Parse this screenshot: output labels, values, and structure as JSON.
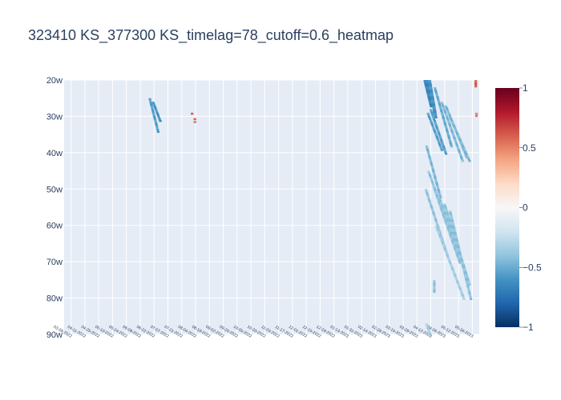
{
  "chart_data": {
    "type": "heatmap",
    "title": "323410 KS_377300 KS_timelag=78_cutoff=0.6_heatmap",
    "xlabel": "",
    "ylabel": "",
    "x_tick_labels": [
      "03-28-2022",
      "04-11-2022",
      "04-25-2022",
      "05-10-2022",
      "05-24-2022",
      "06-08-2022",
      "06-22-2022",
      "07-07-2022",
      "07-21-2022",
      "08-04-2022",
      "08-18-2022",
      "09-02-2022",
      "09-20-2022",
      "10-05-2022",
      "10-20-2022",
      "11-03-2022",
      "11-17-2022",
      "12-01-2022",
      "12-15-2022",
      "12-29-2022",
      "01-13-2023",
      "01-31-2023",
      "02-14-2023",
      "02-28-2023",
      "03-15-2023",
      "03-29-2023",
      "04-12-2023",
      "04-26-2023",
      "05-12-2023",
      "05-26-2023"
    ],
    "y_tick_labels": [
      "20w",
      "30w",
      "40w",
      "50w",
      "60w",
      "70w",
      "80w",
      "90w"
    ],
    "y_range": [
      20,
      90
    ],
    "zmin": -1,
    "zmax": 1,
    "colorscale": "RdBu",
    "colorbar_ticks": [
      "1",
      "0.5",
      "0",
      "−0.5",
      "−1"
    ],
    "colorbar_tick_values": [
      1,
      0.5,
      0,
      -0.5,
      -1
    ],
    "grid": true,
    "n_x": 30,
    "strokes": [
      {
        "x0": 6.2,
        "y0": 25,
        "x1": 6.8,
        "y1": 34,
        "w": 0.18,
        "value": -0.55
      },
      {
        "x0": 6.45,
        "y0": 26,
        "x1": 6.95,
        "y1": 31,
        "w": 0.12,
        "value": -0.6
      },
      {
        "x0": 9.25,
        "y0": 29,
        "x1": 9.25,
        "y1": 29.4,
        "w": 0.08,
        "value": 0.6
      },
      {
        "x0": 9.45,
        "y0": 30.5,
        "x1": 9.45,
        "y1": 31.3,
        "w": 0.1,
        "value": 0.6
      },
      {
        "x0": 26.15,
        "y0": 20,
        "x1": 26.6,
        "y1": 27,
        "w": 0.35,
        "value": -0.65
      },
      {
        "x0": 26.4,
        "y0": 20,
        "x1": 26.85,
        "y1": 30,
        "w": 0.25,
        "value": -0.6
      },
      {
        "x0": 26.5,
        "y0": 28,
        "x1": 27.6,
        "y1": 40,
        "w": 0.14,
        "value": -0.55
      },
      {
        "x0": 26.3,
        "y0": 29,
        "x1": 27.3,
        "y1": 39,
        "w": 0.1,
        "value": -0.55
      },
      {
        "x0": 26.8,
        "y0": 22,
        "x1": 28.0,
        "y1": 38,
        "w": 0.1,
        "value": -0.5
      },
      {
        "x0": 27.3,
        "y0": 26,
        "x1": 28.8,
        "y1": 42,
        "w": 0.12,
        "value": -0.45
      },
      {
        "x0": 27.6,
        "y0": 27,
        "x1": 29.1,
        "y1": 41,
        "w": 0.12,
        "value": -0.45
      },
      {
        "x0": 27.9,
        "y0": 30,
        "x1": 29.3,
        "y1": 42,
        "w": 0.1,
        "value": -0.45
      },
      {
        "x0": 26.2,
        "y0": 38,
        "x1": 27.2,
        "y1": 52,
        "w": 0.1,
        "value": -0.45
      },
      {
        "x0": 26.35,
        "y0": 45,
        "x1": 28.3,
        "y1": 66,
        "w": 0.12,
        "value": -0.4
      },
      {
        "x0": 26.15,
        "y0": 50,
        "x1": 27.7,
        "y1": 68,
        "w": 0.1,
        "value": -0.4
      },
      {
        "x0": 26.7,
        "y0": 49,
        "x1": 28.6,
        "y1": 70,
        "w": 0.14,
        "value": -0.4
      },
      {
        "x0": 27.1,
        "y0": 52,
        "x1": 29.1,
        "y1": 74,
        "w": 0.14,
        "value": -0.4
      },
      {
        "x0": 27.5,
        "y0": 54,
        "x1": 29.3,
        "y1": 76,
        "w": 0.14,
        "value": -0.4
      },
      {
        "x0": 27.9,
        "y0": 56,
        "x1": 29.4,
        "y1": 80,
        "w": 0.12,
        "value": -0.4
      },
      {
        "x0": 26.9,
        "y0": 60,
        "x1": 28.9,
        "y1": 80,
        "w": 0.1,
        "value": -0.35
      },
      {
        "x0": 26.75,
        "y0": 75,
        "x1": 26.75,
        "y1": 78,
        "w": 0.08,
        "value": -0.4
      },
      {
        "x0": 26.2,
        "y0": 87,
        "x1": 26.5,
        "y1": 90,
        "w": 0.12,
        "value": -0.35
      },
      {
        "x0": 29.75,
        "y0": 20,
        "x1": 29.75,
        "y1": 21.5,
        "w": 0.15,
        "value": 0.6
      },
      {
        "x0": 29.8,
        "y0": 29,
        "x1": 29.8,
        "y1": 29.6,
        "w": 0.06,
        "value": 0.55
      }
    ]
  }
}
